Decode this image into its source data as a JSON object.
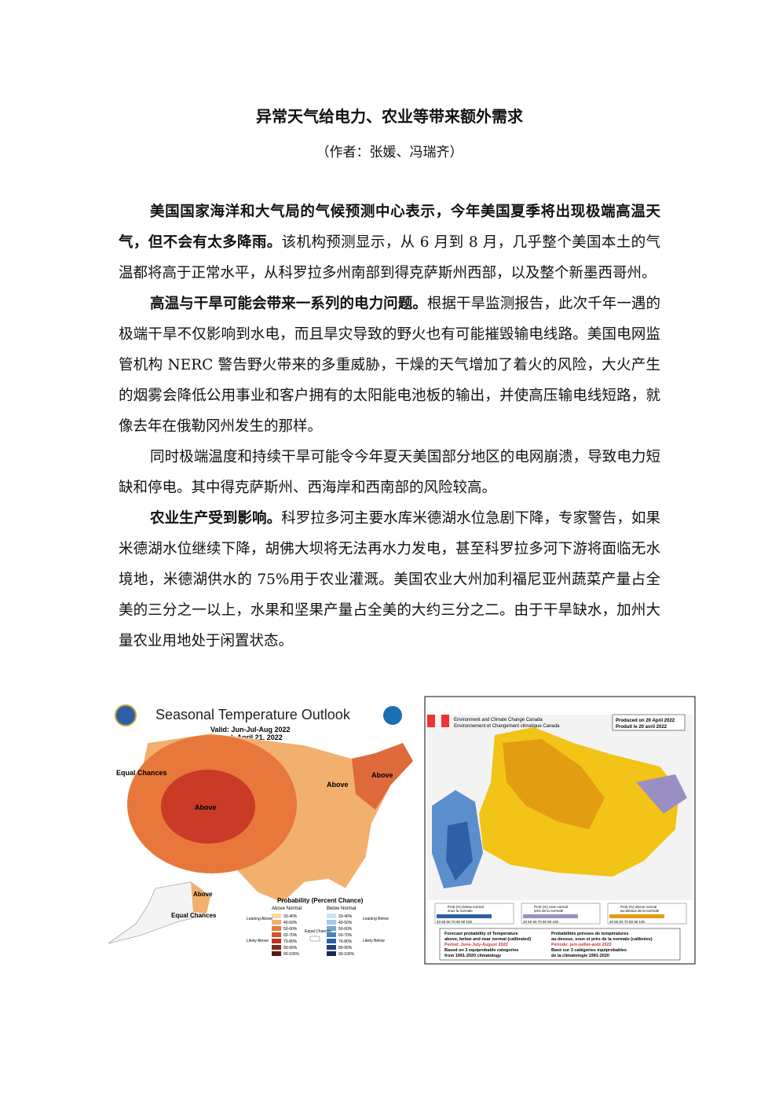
{
  "title": "异常天气给电力、农业等带来额外需求",
  "author": "（作者：张媛、冯瑞齐）",
  "paragraphs": [
    {
      "bold": "美国国家海洋和大气局的气候预测中心表示，今年美国夏季将出现极端高温天气，但不会有太多降雨。",
      "text": "该机构预测显示，从 6 月到 8 月，几乎整个美国本土的气温都将高于正常水平，从科罗拉多州南部到得克萨斯州西部，以及整个新墨西哥州。"
    },
    {
      "bold": "高温与干旱可能会带来一系列的电力问题。",
      "text": "根据干旱监测报告，此次千年一遇的极端干旱不仅影响到水电，而且旱灾导致的野火也有可能摧毁输电线路。美国电网监管机构 NERC 警告野火带来的多重威胁，干燥的天气增加了着火的风险，大火产生的烟雾会降低公用事业和客户拥有的太阳能电池板的输出，并使高压输电线短路，就像去年在俄勒冈州发生的那样。"
    },
    {
      "text": "同时极端温度和持续干旱可能令今年夏天美国部分地区的电网崩溃，导致电力短缺和停电。其中得克萨斯州、西海岸和西南部的风险较高。"
    },
    {
      "bold": "农业生产受到影响。",
      "text": "科罗拉多河主要水库米德湖水位急剧下降，专家警告，如果米德湖水位继续下降，胡佛大坝将无法再水力发电，甚至科罗拉多河下游将面临无水境地，米德湖供水的 75%用于农业灌溉。美国农业大州加利福尼亚州蔬菜产量占全美的三分之一以上，水果和坚果产量占全美的大约三分之二。由于干旱缺水，加州大量农业用地处于闲置状态。"
    }
  ],
  "us_map": {
    "title": "Seasonal Temperature Outlook",
    "valid": "Valid: Jun-Jul-Aug 2022",
    "issued": "Issued: April 21, 2022",
    "labels": [
      "Equal Chances",
      "Above",
      "Above",
      "Above",
      "Above",
      "Equal Chances"
    ],
    "legend_title": "Probability (Percent Chance)",
    "legend_headers": [
      "Above Normal",
      "Below Normal"
    ],
    "legend_ranges": [
      "33-40%",
      "40-50%",
      "50-60%",
      "60-70%",
      "70-80%",
      "80-90%",
      "90-100%"
    ],
    "legend_side": [
      "Leaning Above",
      "Likely Above",
      "Equal Chances",
      "Leaning Below",
      "Likely Below"
    ]
  },
  "canada_map": {
    "agency": [
      "Environment and Climate Change Canada",
      "Environnement et Changement climatique Canada"
    ],
    "produced": [
      "Produced on 20 April 2022",
      "Produit le 20 avril 2022"
    ],
    "legends": [
      [
        "Prob (%) below normal",
        "sous la normale"
      ],
      [
        "Prob (%) near normal",
        "près de la normale"
      ],
      [
        "Prob (%) above normal",
        "au-dessus de la normale"
      ]
    ],
    "scale": "40 50 60 70 80 90 100",
    "notes_en": [
      "Forecast probability of Temperature",
      "above, below and near normal (calibrated)",
      "Period: June-July-August 2022",
      "Based on 3 equiprobable categories",
      "from 1991-2020 climatology"
    ],
    "notes_fr": [
      "Probabilités prévues de températures",
      "au-dessus, sous et près de la normale (calibrées)",
      "Période: juin-juillet-août 2022",
      "Basé sur 3 catégories équiprobables",
      "de la climatologie 1991-2020"
    ]
  }
}
